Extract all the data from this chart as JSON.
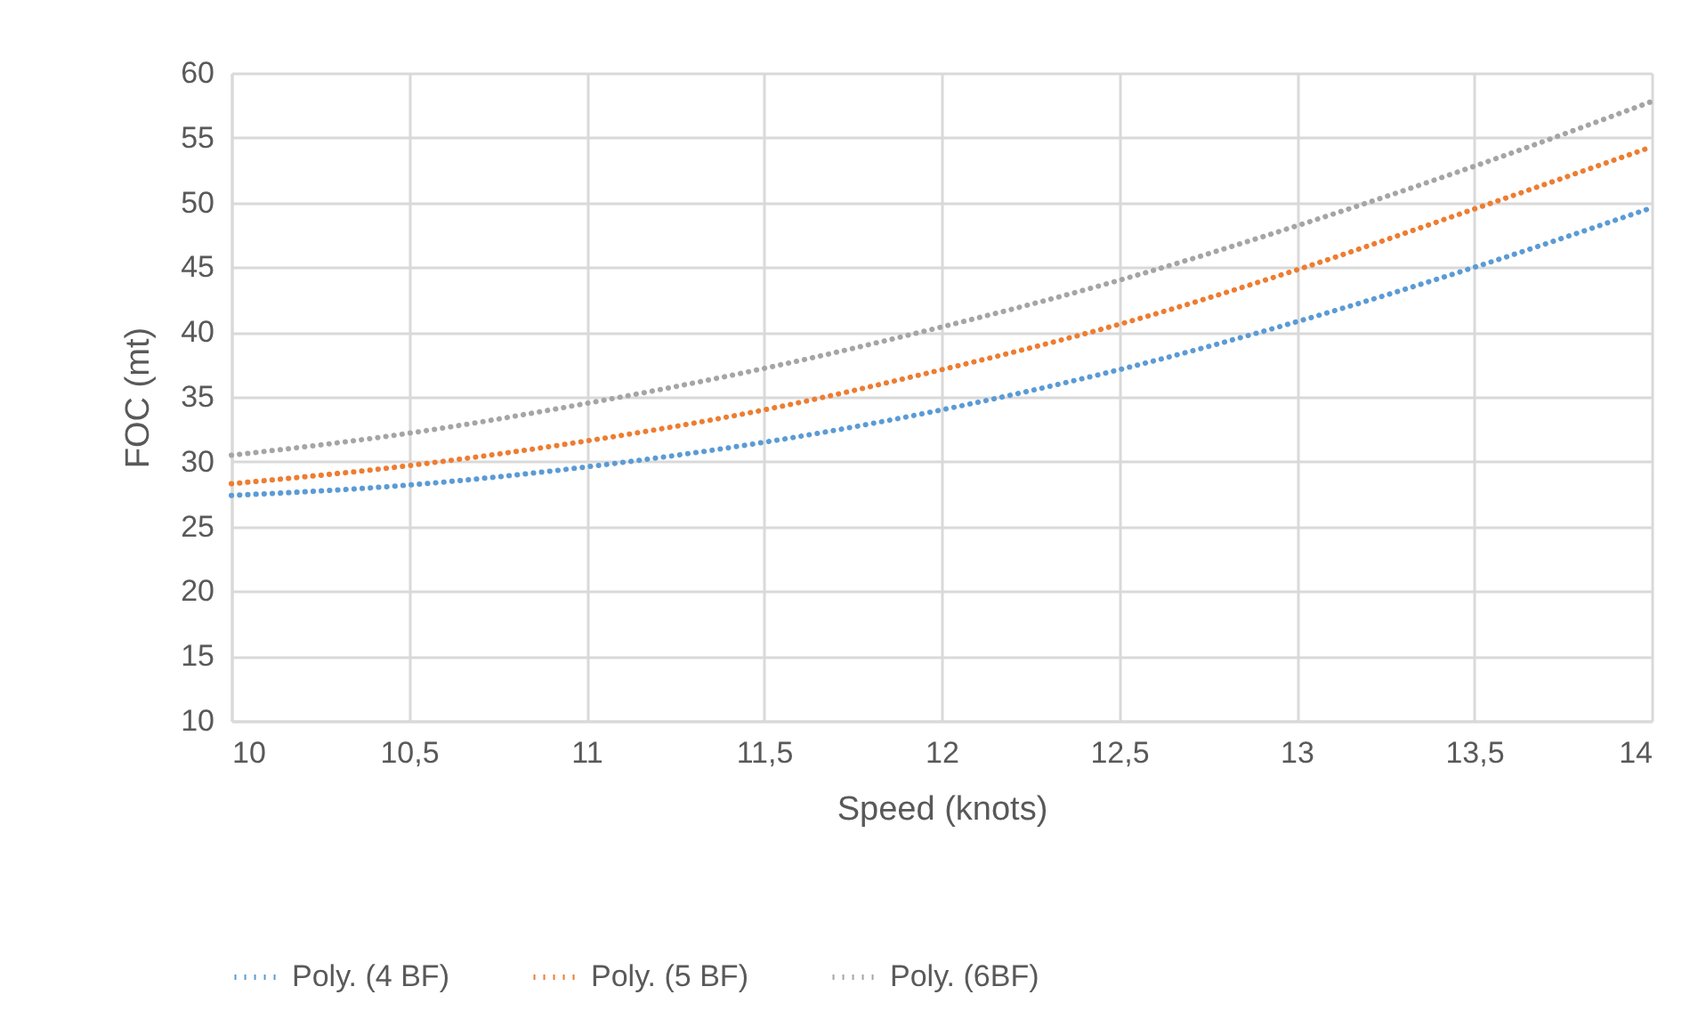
{
  "chart_data": {
    "type": "line",
    "xlabel": "Speed (knots)",
    "ylabel": "FOC (mt)",
    "x": [
      10,
      10.5,
      11,
      11.5,
      12,
      12.5,
      13,
      13.5,
      14
    ],
    "series": [
      {
        "name": "Poly. (4 BF)",
        "color": "#5b9bd5",
        "values": [
          27.4,
          28.2,
          29.6,
          31.5,
          34.0,
          37.1,
          40.8,
          45.0,
          49.6
        ]
      },
      {
        "name": "Poly. (5 BF)",
        "color": "#ed7d31",
        "values": [
          28.3,
          29.7,
          31.6,
          34.0,
          37.1,
          40.6,
          44.8,
          49.5,
          54.3
        ]
      },
      {
        "name": "Poly. (6BF)",
        "color": "#a5a5a5",
        "values": [
          30.5,
          32.2,
          34.5,
          37.2,
          40.4,
          44.0,
          48.2,
          52.8,
          57.8
        ]
      }
    ],
    "xlim": [
      10,
      14
    ],
    "xticks": [
      10,
      {
        "value": 10.5,
        "label": "10,5"
      },
      11,
      {
        "value": 11.5,
        "label": "11,5"
      },
      12,
      {
        "value": 12.5,
        "label": "12,5"
      },
      13,
      {
        "value": 13.5,
        "label": "13,5"
      },
      14
    ],
    "ylim": [
      10,
      60
    ],
    "yticks": [
      10,
      15,
      20,
      25,
      30,
      35,
      40,
      45,
      50,
      55,
      60
    ],
    "grid": true,
    "legend": "bottom",
    "line_style": "dotted"
  }
}
